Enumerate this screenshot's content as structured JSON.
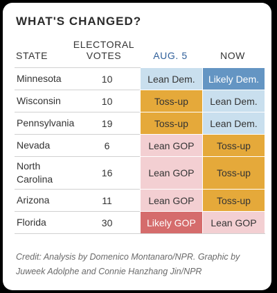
{
  "title": "WHAT'S CHANGED?",
  "headers": {
    "state": "STATE",
    "votes_line1": "ELECTORAL",
    "votes_line2": "VOTES",
    "aug": "AUG. 5",
    "now": "NOW"
  },
  "rows": [
    {
      "state": "Minnesota",
      "votes": "10",
      "aug": "Lean Dem.",
      "now": "Likely Dem."
    },
    {
      "state": "Wisconsin",
      "votes": "10",
      "aug": "Toss-up",
      "now": "Lean Dem."
    },
    {
      "state": "Pennsylvania",
      "votes": "19",
      "aug": "Toss-up",
      "now": "Lean Dem."
    },
    {
      "state": "Nevada",
      "votes": "6",
      "aug": "Lean GOP",
      "now": "Toss-up"
    },
    {
      "state": "North Carolina",
      "votes": "16",
      "aug": "Lean GOP",
      "now": "Toss-up"
    },
    {
      "state": "Arizona",
      "votes": "11",
      "aug": "Lean GOP",
      "now": "Toss-up"
    },
    {
      "state": "Florida",
      "votes": "30",
      "aug": "Likely GOP",
      "now": "Lean GOP"
    }
  ],
  "colors": {
    "lean_dem": "#c9dfee",
    "likely_dem": "#6495c3",
    "tossup": "#e5a93a",
    "lean_gop": "#f3cfd2",
    "likely_gop": "#d56c6c",
    "aug_header": "#2f5f9a"
  },
  "credit": "Credit: Analysis by Domenico Montanaro/NPR. Graphic by Juweek Adolphe and Connie Hanzhang Jin/NPR"
}
